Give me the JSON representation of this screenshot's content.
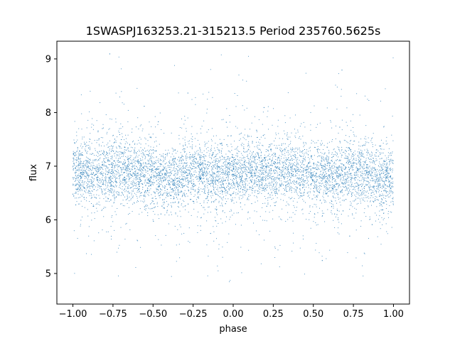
{
  "chart_data": {
    "type": "scatter",
    "title": "1SWASPJ163253.21-315213.5 Period 235760.5625s",
    "xlabel": "phase",
    "ylabel": "flux",
    "xlim": [
      -1.1,
      1.1
    ],
    "ylim": [
      4.43,
      9.33
    ],
    "x_ticks": [
      -1.0,
      -0.75,
      -0.5,
      -0.25,
      0.0,
      0.25,
      0.5,
      0.75,
      1.0
    ],
    "x_tick_labels": [
      "−1.00",
      "−0.75",
      "−0.50",
      "−0.25",
      "0.00",
      "0.25",
      "0.50",
      "0.75",
      "1.00"
    ],
    "y_ticks": [
      5,
      6,
      7,
      8,
      9
    ],
    "y_tick_labels": [
      "5",
      "6",
      "7",
      "8",
      "9"
    ],
    "grid": false,
    "legend": "none",
    "marker_color": "#1f77b4",
    "series": [
      {
        "profile_phase": [
          -1.0,
          -0.9,
          -0.8,
          -0.7,
          -0.6,
          -0.5,
          -0.4,
          -0.3,
          -0.2,
          -0.1,
          0.0,
          0.1,
          0.2,
          0.3,
          0.4,
          0.5,
          0.6,
          0.7,
          0.8,
          0.9,
          1.0
        ],
        "profile_median_flux": [
          6.9,
          6.9,
          6.85,
          6.95,
          6.9,
          6.8,
          6.75,
          6.85,
          6.9,
          6.8,
          6.8,
          6.9,
          6.85,
          6.95,
          6.9,
          6.8,
          6.75,
          6.85,
          6.9,
          6.8,
          6.8
        ],
        "flux_min": 4.65,
        "flux_max": 9.1
      }
    ]
  }
}
